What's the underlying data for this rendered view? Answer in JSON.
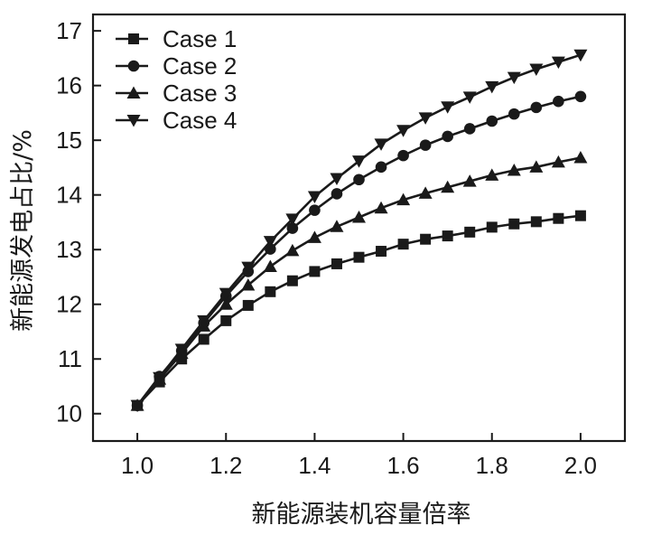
{
  "chart_data": {
    "type": "line",
    "title": "",
    "xlabel": "新能源装机容量倍率",
    "ylabel": "新能源发电占比/%",
    "xlim": [
      0.9,
      2.1
    ],
    "ylim": [
      9.5,
      17.3
    ],
    "xticks": [
      1.0,
      1.2,
      1.4,
      1.6,
      1.8,
      2.0
    ],
    "xtick_labels": [
      "1.0",
      "1.2",
      "1.4",
      "1.6",
      "1.8",
      "2.0"
    ],
    "yticks": [
      10,
      11,
      12,
      13,
      14,
      15,
      16,
      17
    ],
    "ytick_labels": [
      "10",
      "11",
      "12",
      "13",
      "14",
      "15",
      "16",
      "17"
    ],
    "grid": false,
    "legend_position": "top-left",
    "x": [
      1.0,
      1.05,
      1.1,
      1.15,
      1.2,
      1.25,
      1.3,
      1.35,
      1.4,
      1.45,
      1.5,
      1.55,
      1.6,
      1.65,
      1.7,
      1.75,
      1.8,
      1.85,
      1.9,
      1.95,
      2.0
    ],
    "series": [
      {
        "name": "Case 1",
        "marker": "square",
        "values": [
          10.15,
          10.58,
          11.0,
          11.36,
          11.7,
          11.98,
          12.23,
          12.43,
          12.6,
          12.74,
          12.86,
          12.97,
          13.1,
          13.19,
          13.25,
          13.32,
          13.41,
          13.47,
          13.51,
          13.57,
          13.62
        ]
      },
      {
        "name": "Case 2",
        "marker": "circle",
        "values": [
          10.15,
          10.68,
          11.15,
          11.66,
          12.15,
          12.6,
          13.01,
          13.39,
          13.72,
          14.02,
          14.28,
          14.51,
          14.72,
          14.91,
          15.07,
          15.21,
          15.35,
          15.48,
          15.6,
          15.71,
          15.8
        ]
      },
      {
        "name": "Case 3",
        "marker": "triangle-up",
        "values": [
          10.15,
          10.63,
          11.1,
          11.6,
          12.0,
          12.35,
          12.69,
          12.98,
          13.22,
          13.42,
          13.59,
          13.76,
          13.91,
          14.03,
          14.14,
          14.25,
          14.36,
          14.45,
          14.51,
          14.6,
          14.68
        ]
      },
      {
        "name": "Case 4",
        "marker": "triangle-down",
        "values": [
          10.15,
          10.66,
          11.18,
          11.7,
          12.2,
          12.68,
          13.15,
          13.56,
          13.97,
          14.3,
          14.62,
          14.93,
          15.18,
          15.41,
          15.61,
          15.79,
          15.98,
          16.15,
          16.3,
          16.43,
          16.56
        ]
      }
    ]
  }
}
